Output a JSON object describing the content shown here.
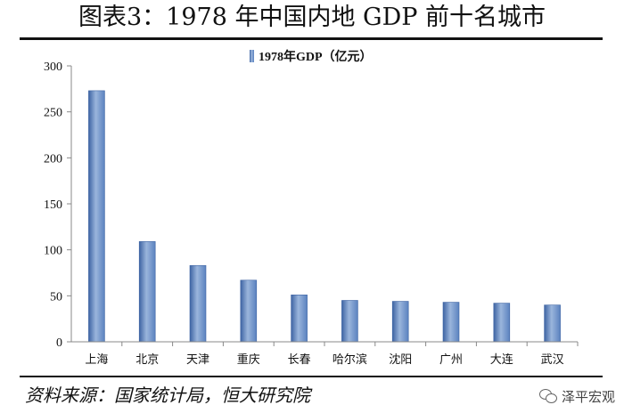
{
  "figure": {
    "title": "图表3：1978 年中国内地 GDP 前十名城市",
    "source": "资料来源：国家统计局，恒大研究院",
    "watermark": "泽平宏观",
    "watermark_icon": "wechat-icon"
  },
  "chart_data": {
    "type": "bar",
    "categories": [
      "上海",
      "北京",
      "天津",
      "重庆",
      "长春",
      "哈尔滨",
      "沈阳",
      "广州",
      "大连",
      "武汉"
    ],
    "series": [
      {
        "name": "1978年GDP（亿元）",
        "values": [
          273,
          109,
          83,
          67,
          51,
          45,
          44,
          43,
          42,
          40
        ]
      }
    ],
    "ylim": [
      0,
      300
    ],
    "yticks": [
      0,
      50,
      100,
      150,
      200,
      250,
      300
    ],
    "grid": false,
    "legend": "top-center",
    "colors": {
      "bar": "#5b82bf",
      "bar_dark": "#3e64a3",
      "bar_light": "#9ab5dc",
      "axis": "#888888",
      "text": "#111111"
    }
  }
}
